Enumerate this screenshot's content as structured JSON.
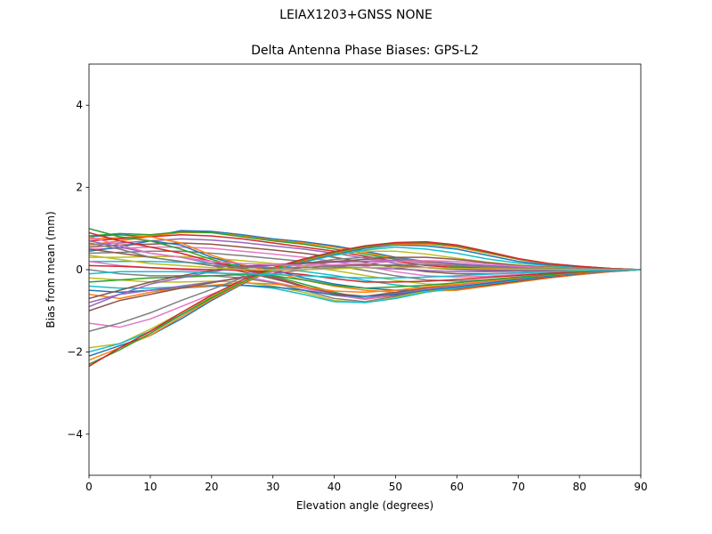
{
  "figure": {
    "suptitle": "LEIAX1203+GNSS  NONE"
  },
  "chart_data": {
    "type": "line",
    "title": "Delta Antenna Phase Biases: GPS-L2",
    "xlabel": "Elevation angle (degrees)",
    "ylabel": "Bias from mean (mm)",
    "xlim": [
      0,
      90
    ],
    "ylim": [
      -5,
      5
    ],
    "xticks": [
      0,
      10,
      20,
      30,
      40,
      50,
      60,
      70,
      80,
      90
    ],
    "yticks": [
      -4,
      -2,
      0,
      2,
      4
    ],
    "ytick_labels": [
      "−4",
      "−2",
      "0",
      "2",
      "4"
    ],
    "grid": false,
    "legend": "none",
    "colors": [
      "#1f77b4",
      "#ff7f0e",
      "#2ca02c",
      "#d62728",
      "#9467bd",
      "#8c564b",
      "#e377c2",
      "#7f7f7f",
      "#bcbd22",
      "#17becf"
    ],
    "x": [
      0,
      5,
      10,
      15,
      20,
      25,
      30,
      35,
      40,
      45,
      50,
      55,
      60,
      65,
      70,
      75,
      80,
      85,
      90
    ],
    "series": [
      {
        "values": [
          0.8,
          0.85,
          0.8,
          0.95,
          0.93,
          0.85,
          0.75,
          0.68,
          0.58,
          0.45,
          0.3,
          0.2,
          0.12,
          0.08,
          0.05,
          0.04,
          0.03,
          0.02,
          0.0
        ]
      },
      {
        "values": [
          0.75,
          0.78,
          0.82,
          0.9,
          0.9,
          0.82,
          0.72,
          0.65,
          0.55,
          0.42,
          0.28,
          0.18,
          0.1,
          0.07,
          0.05,
          0.03,
          0.02,
          0.01,
          0.0
        ]
      },
      {
        "values": [
          0.82,
          0.88,
          0.85,
          0.92,
          0.9,
          0.8,
          0.7,
          0.62,
          0.5,
          0.38,
          0.25,
          0.15,
          0.08,
          0.05,
          0.04,
          0.03,
          0.02,
          0.01,
          0.0
        ]
      },
      {
        "values": [
          0.7,
          0.75,
          0.8,
          0.85,
          0.82,
          0.75,
          0.65,
          0.55,
          0.45,
          0.33,
          0.2,
          0.1,
          0.05,
          0.03,
          0.02,
          0.02,
          0.01,
          0.01,
          0.0
        ]
      },
      {
        "values": [
          0.6,
          0.65,
          0.7,
          0.75,
          0.72,
          0.66,
          0.58,
          0.5,
          0.4,
          0.28,
          0.15,
          0.05,
          0.0,
          -0.02,
          -0.02,
          -0.01,
          -0.01,
          0.0,
          0.0
        ]
      },
      {
        "values": [
          0.55,
          0.6,
          0.62,
          0.65,
          0.62,
          0.55,
          0.48,
          0.4,
          0.3,
          0.18,
          0.05,
          -0.05,
          -0.1,
          -0.1,
          -0.08,
          -0.05,
          -0.03,
          -0.01,
          0.0
        ]
      },
      {
        "values": [
          0.5,
          0.52,
          0.55,
          0.55,
          0.52,
          0.45,
          0.38,
          0.3,
          0.2,
          0.08,
          -0.05,
          -0.15,
          -0.18,
          -0.16,
          -0.12,
          -0.08,
          -0.05,
          -0.02,
          0.0
        ]
      },
      {
        "values": [
          0.4,
          0.42,
          0.45,
          0.45,
          0.4,
          0.34,
          0.27,
          0.2,
          0.1,
          -0.02,
          -0.15,
          -0.25,
          -0.28,
          -0.24,
          -0.18,
          -0.12,
          -0.07,
          -0.03,
          0.0
        ]
      },
      {
        "values": [
          0.3,
          0.3,
          0.32,
          0.32,
          0.28,
          0.22,
          0.15,
          0.08,
          -0.02,
          -0.14,
          -0.26,
          -0.35,
          -0.37,
          -0.32,
          -0.24,
          -0.16,
          -0.09,
          -0.04,
          0.0
        ]
      },
      {
        "values": [
          0.2,
          0.2,
          0.2,
          0.18,
          0.15,
          0.1,
          0.04,
          -0.04,
          -0.14,
          -0.26,
          -0.37,
          -0.44,
          -0.45,
          -0.38,
          -0.28,
          -0.18,
          -0.1,
          -0.04,
          0.0
        ]
      },
      {
        "values": [
          0.45,
          0.55,
          0.7,
          0.6,
          0.3,
          0.1,
          0.0,
          -0.2,
          -0.35,
          -0.45,
          -0.5,
          -0.5,
          -0.48,
          -0.4,
          -0.3,
          -0.2,
          -0.12,
          -0.05,
          0.0
        ]
      },
      {
        "values": [
          0.6,
          0.7,
          0.8,
          0.65,
          0.35,
          0.12,
          -0.05,
          -0.25,
          -0.4,
          -0.5,
          -0.55,
          -0.52,
          -0.5,
          -0.4,
          -0.3,
          -0.2,
          -0.12,
          -0.05,
          0.0
        ]
      },
      {
        "values": [
          1.0,
          0.8,
          0.7,
          0.5,
          0.25,
          0.05,
          -0.15,
          -0.35,
          -0.55,
          -0.7,
          -0.6,
          -0.5,
          -0.45,
          -0.38,
          -0.28,
          -0.18,
          -0.1,
          -0.04,
          0.0
        ]
      },
      {
        "values": [
          0.9,
          0.7,
          0.55,
          0.4,
          0.2,
          0.02,
          -0.18,
          -0.4,
          -0.6,
          -0.72,
          -0.62,
          -0.52,
          -0.46,
          -0.37,
          -0.27,
          -0.18,
          -0.1,
          -0.04,
          0.0
        ]
      },
      {
        "values": [
          0.7,
          0.55,
          0.4,
          0.3,
          0.15,
          0.0,
          -0.2,
          -0.42,
          -0.62,
          -0.7,
          -0.58,
          -0.48,
          -0.42,
          -0.34,
          -0.25,
          -0.16,
          -0.09,
          -0.04,
          0.0
        ]
      },
      {
        "values": [
          0.5,
          0.4,
          0.3,
          0.2,
          0.1,
          -0.05,
          -0.22,
          -0.4,
          -0.58,
          -0.65,
          -0.55,
          -0.45,
          -0.38,
          -0.3,
          -0.22,
          -0.14,
          -0.08,
          -0.03,
          0.0
        ]
      },
      {
        "values": [
          0.2,
          0.1,
          0.05,
          0.0,
          -0.05,
          -0.15,
          -0.3,
          -0.45,
          -0.62,
          -0.72,
          -0.6,
          -0.48,
          -0.4,
          -0.31,
          -0.22,
          -0.14,
          -0.08,
          -0.03,
          0.0
        ]
      },
      {
        "values": [
          0.0,
          -0.1,
          -0.15,
          -0.15,
          -0.15,
          -0.2,
          -0.32,
          -0.5,
          -0.7,
          -0.78,
          -0.65,
          -0.5,
          -0.42,
          -0.33,
          -0.23,
          -0.15,
          -0.08,
          -0.03,
          0.0
        ]
      },
      {
        "values": [
          -0.2,
          -0.25,
          -0.3,
          -0.3,
          -0.28,
          -0.3,
          -0.4,
          -0.55,
          -0.75,
          -0.8,
          -0.68,
          -0.52,
          -0.44,
          -0.34,
          -0.24,
          -0.15,
          -0.08,
          -0.03,
          0.0
        ]
      },
      {
        "values": [
          -0.4,
          -0.45,
          -0.45,
          -0.42,
          -0.38,
          -0.38,
          -0.45,
          -0.6,
          -0.78,
          -0.8,
          -0.7,
          -0.55,
          -0.45,
          -0.35,
          -0.25,
          -0.16,
          -0.09,
          -0.03,
          0.0
        ]
      },
      {
        "values": [
          -0.5,
          -0.55,
          -0.5,
          -0.45,
          -0.4,
          -0.38,
          -0.42,
          -0.5,
          -0.62,
          -0.65,
          -0.6,
          -0.5,
          -0.42,
          -0.33,
          -0.23,
          -0.15,
          -0.08,
          -0.03,
          0.0
        ]
      },
      {
        "values": [
          -0.6,
          -0.7,
          -0.55,
          -0.45,
          -0.38,
          -0.32,
          -0.35,
          -0.42,
          -0.52,
          -0.55,
          -0.5,
          -0.42,
          -0.36,
          -0.28,
          -0.2,
          -0.13,
          -0.07,
          -0.03,
          0.0
        ]
      },
      {
        "values": [
          -0.3,
          -0.25,
          -0.2,
          -0.18,
          -0.15,
          -0.12,
          -0.15,
          -0.25,
          -0.38,
          -0.45,
          -0.42,
          -0.38,
          -0.32,
          -0.25,
          -0.18,
          -0.12,
          -0.06,
          -0.02,
          0.0
        ]
      },
      {
        "values": [
          0.1,
          0.08,
          0.05,
          0.02,
          0.0,
          -0.02,
          -0.05,
          -0.12,
          -0.22,
          -0.3,
          -0.3,
          -0.28,
          -0.24,
          -0.19,
          -0.14,
          -0.09,
          -0.05,
          -0.02,
          0.0
        ]
      },
      {
        "values": [
          -0.8,
          -0.6,
          -0.5,
          -0.4,
          -0.3,
          -0.2,
          -0.1,
          0.0,
          0.05,
          0.05,
          0.02,
          -0.02,
          -0.05,
          -0.05,
          -0.04,
          -0.03,
          -0.02,
          -0.01,
          0.0
        ]
      },
      {
        "values": [
          -1.0,
          -0.75,
          -0.6,
          -0.45,
          -0.32,
          -0.18,
          -0.05,
          0.05,
          0.1,
          0.12,
          0.1,
          0.05,
          0.02,
          0.0,
          0.0,
          0.0,
          0.0,
          0.0,
          0.0
        ]
      },
      {
        "values": [
          -1.3,
          -1.4,
          -1.2,
          -0.9,
          -0.6,
          -0.3,
          -0.05,
          0.1,
          0.2,
          0.25,
          0.22,
          0.15,
          0.1,
          0.06,
          0.04,
          0.03,
          0.02,
          0.01,
          0.0
        ]
      },
      {
        "values": [
          -1.5,
          -1.3,
          -1.05,
          -0.75,
          -0.48,
          -0.2,
          0.0,
          0.15,
          0.25,
          0.3,
          0.28,
          0.2,
          0.14,
          0.09,
          0.06,
          0.04,
          0.02,
          0.01,
          0.0
        ]
      },
      {
        "values": [
          -1.9,
          -1.8,
          -1.45,
          -1.05,
          -0.65,
          -0.3,
          0.0,
          0.2,
          0.35,
          0.45,
          0.45,
          0.38,
          0.28,
          0.18,
          0.11,
          0.07,
          0.04,
          0.02,
          0.0
        ]
      },
      {
        "values": [
          -2.0,
          -1.8,
          -1.5,
          -1.1,
          -0.7,
          -0.32,
          -0.02,
          0.18,
          0.35,
          0.48,
          0.55,
          0.5,
          0.4,
          0.26,
          0.16,
          0.1,
          0.06,
          0.03,
          0.0
        ]
      },
      {
        "values": [
          -2.1,
          -1.85,
          -1.6,
          -1.2,
          -0.75,
          -0.35,
          0.0,
          0.2,
          0.38,
          0.52,
          0.6,
          0.58,
          0.5,
          0.35,
          0.2,
          0.12,
          0.07,
          0.03,
          0.0
        ]
      },
      {
        "values": [
          -2.2,
          -1.9,
          -1.6,
          -1.15,
          -0.72,
          -0.33,
          0.0,
          0.22,
          0.4,
          0.55,
          0.62,
          0.62,
          0.55,
          0.4,
          0.25,
          0.14,
          0.08,
          0.03,
          0.0
        ]
      },
      {
        "values": [
          -2.3,
          -1.95,
          -1.55,
          -1.1,
          -0.68,
          -0.3,
          0.02,
          0.24,
          0.42,
          0.56,
          0.64,
          0.65,
          0.58,
          0.42,
          0.26,
          0.15,
          0.08,
          0.03,
          0.0
        ]
      },
      {
        "values": [
          -2.35,
          -1.9,
          -1.5,
          -1.05,
          -0.62,
          -0.25,
          0.05,
          0.26,
          0.44,
          0.58,
          0.66,
          0.68,
          0.6,
          0.44,
          0.27,
          0.15,
          0.08,
          0.03,
          0.0
        ]
      },
      {
        "values": [
          -0.9,
          -0.6,
          -0.35,
          -0.2,
          -0.05,
          0.05,
          0.1,
          0.15,
          0.18,
          0.2,
          0.22,
          0.2,
          0.15,
          0.1,
          0.06,
          0.04,
          0.02,
          0.01,
          0.0
        ]
      },
      {
        "values": [
          -0.7,
          -0.5,
          -0.3,
          -0.15,
          -0.02,
          0.08,
          0.12,
          0.16,
          0.2,
          0.25,
          0.3,
          0.3,
          0.25,
          0.17,
          0.1,
          0.06,
          0.03,
          0.01,
          0.0
        ]
      },
      {
        "values": [
          0.8,
          0.6,
          0.4,
          0.3,
          0.2,
          0.15,
          0.12,
          0.1,
          0.12,
          0.15,
          0.2,
          0.22,
          0.2,
          0.14,
          0.08,
          0.05,
          0.03,
          0.01,
          0.0
        ]
      },
      {
        "values": [
          0.65,
          0.5,
          0.3,
          0.2,
          0.1,
          0.05,
          0.05,
          0.05,
          0.08,
          0.1,
          0.12,
          0.12,
          0.1,
          0.07,
          0.04,
          0.03,
          0.02,
          0.01,
          0.0
        ]
      },
      {
        "values": [
          0.35,
          0.25,
          0.15,
          0.1,
          0.05,
          0.0,
          0.0,
          0.0,
          0.02,
          0.05,
          0.06,
          0.05,
          0.03,
          0.02,
          0.01,
          0.01,
          0.0,
          0.0,
          0.0
        ]
      },
      {
        "values": [
          -0.1,
          -0.05,
          -0.05,
          -0.05,
          -0.08,
          -0.1,
          -0.12,
          -0.15,
          -0.18,
          -0.2,
          -0.2,
          -0.18,
          -0.15,
          -0.11,
          -0.08,
          -0.05,
          -0.03,
          -0.01,
          0.0
        ]
      }
    ]
  }
}
